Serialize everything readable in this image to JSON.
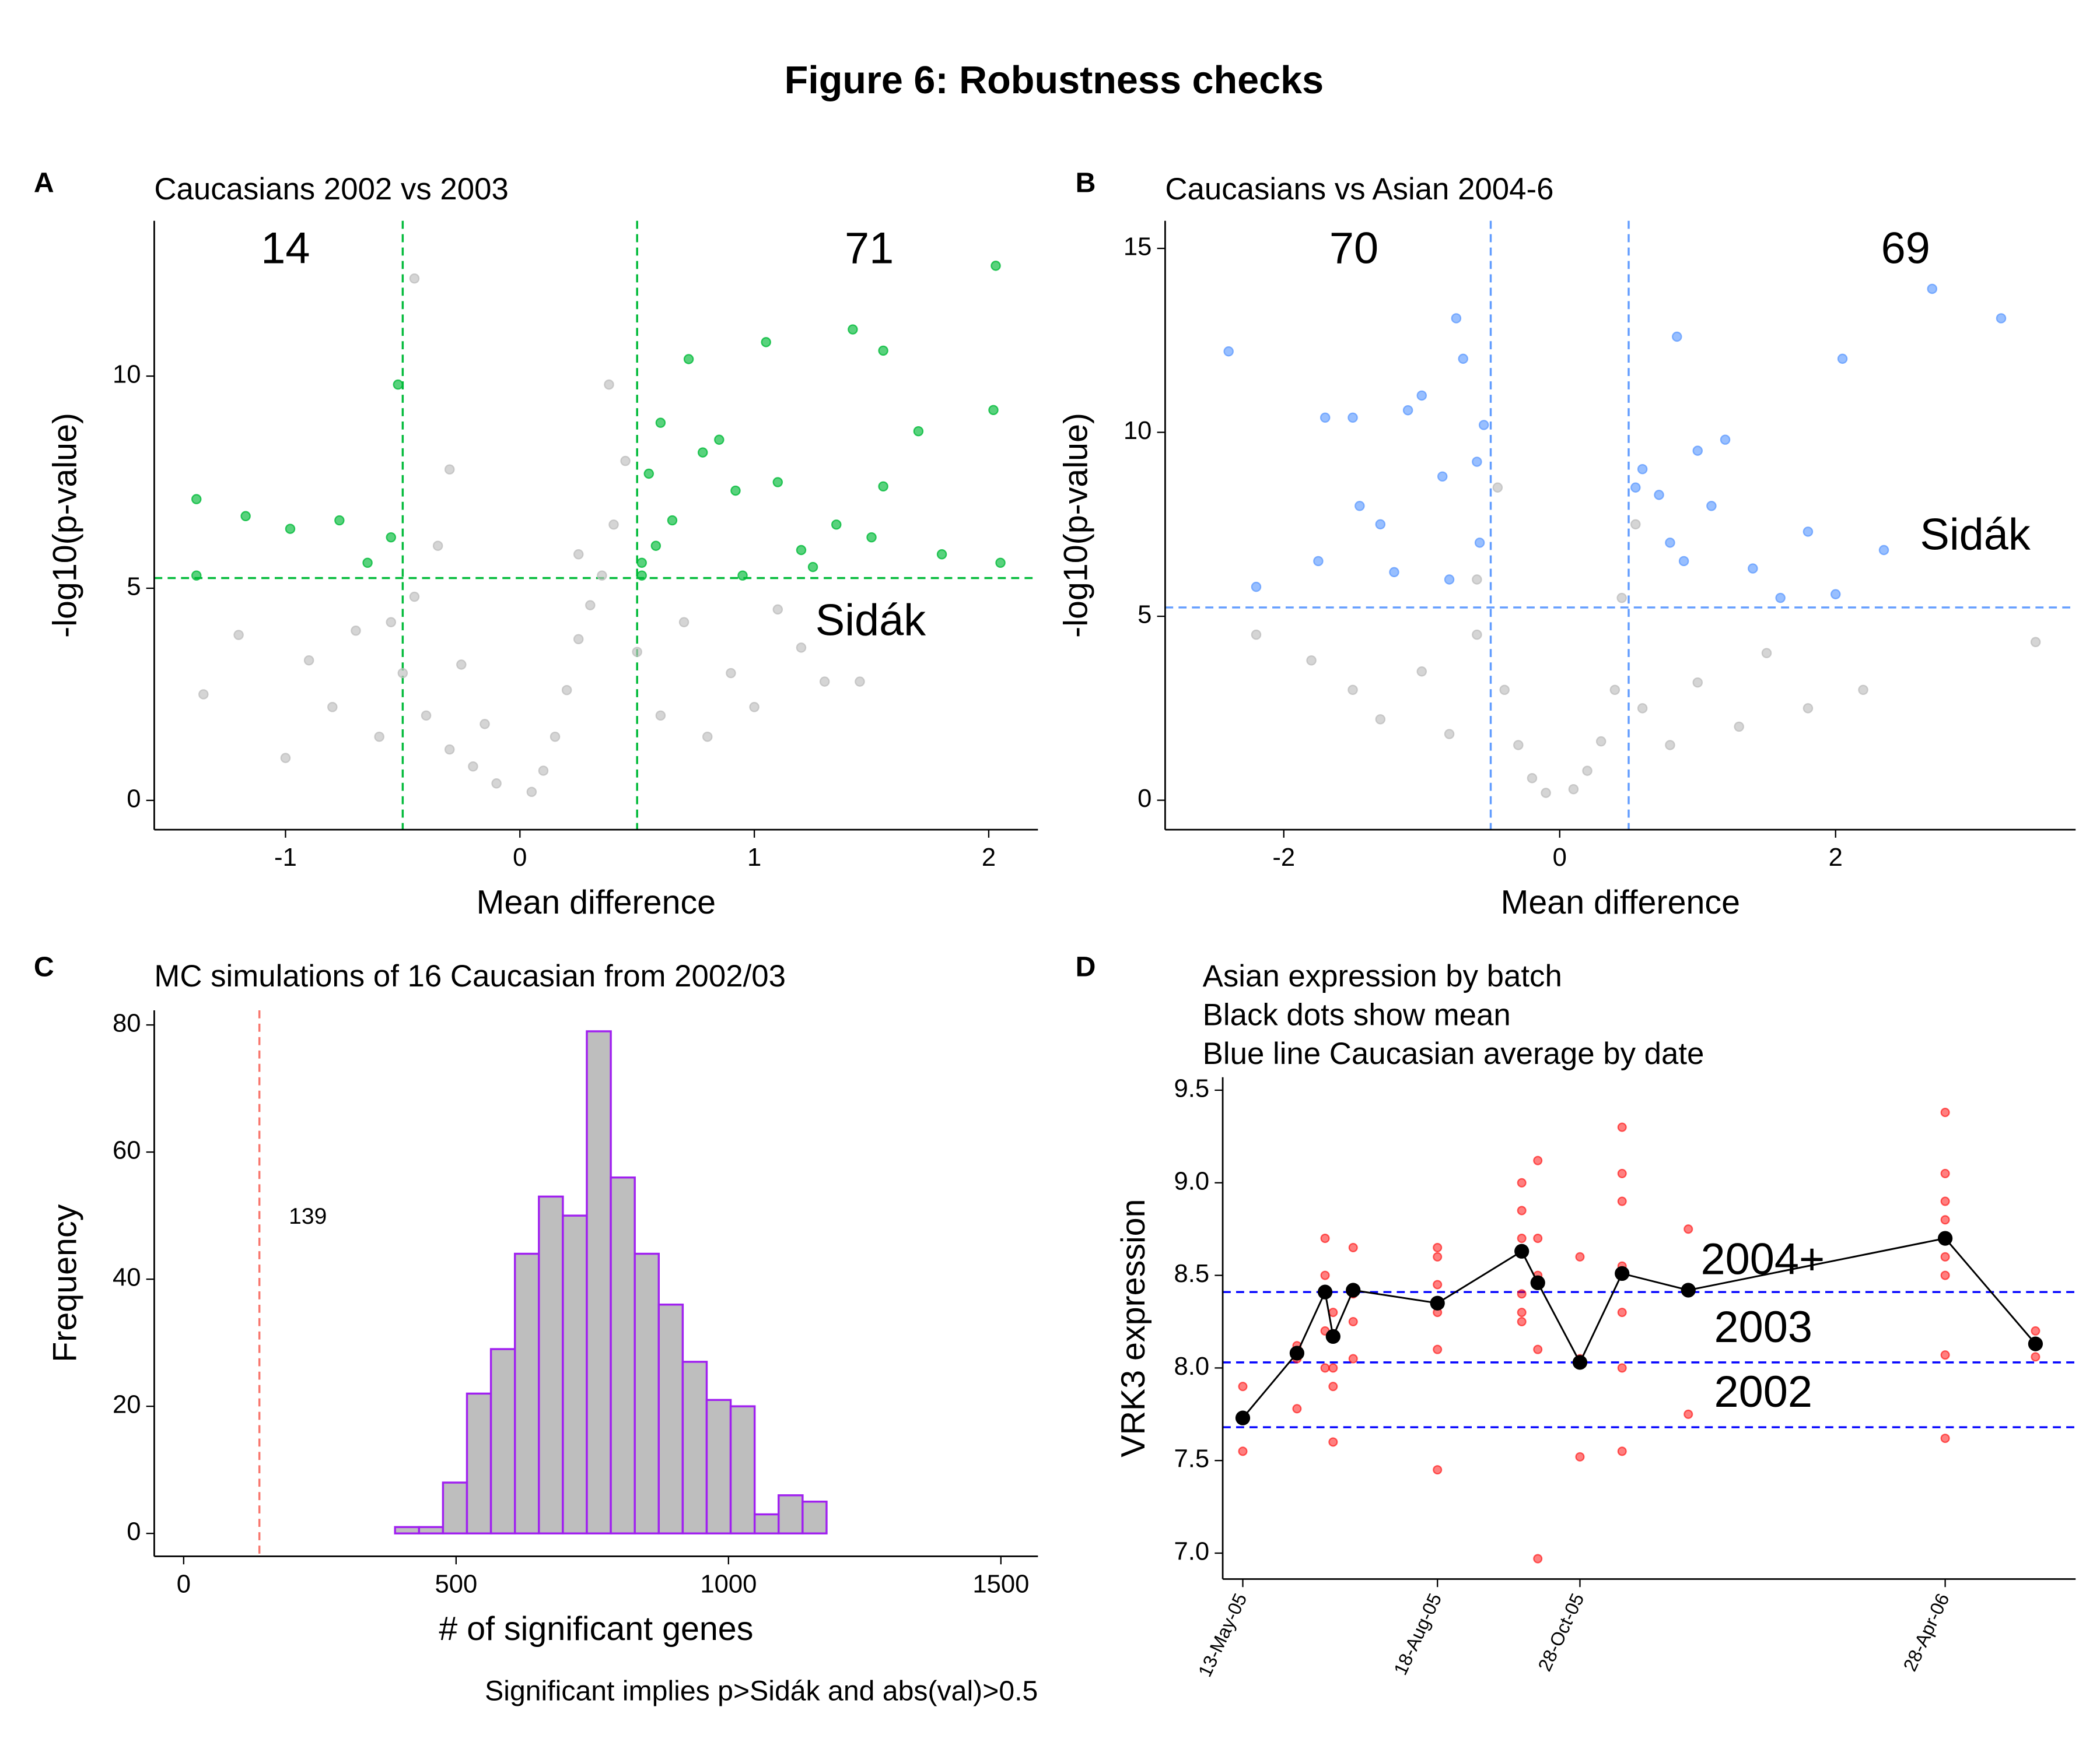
{
  "title": "Figure 6: Robustness checks",
  "chart_data": [
    {
      "panel": "A",
      "type": "scatter",
      "title": "Caucasians 2002 vs 2003",
      "xlabel": "Mean difference",
      "ylabel": "-log10(p-value)",
      "xlim": [
        -1.56,
        2.21
      ],
      "ylim": [
        -0.69,
        13.66
      ],
      "xticks": [
        -1,
        0,
        1,
        2
      ],
      "yticks": [
        0,
        5,
        10
      ],
      "series": [
        {
          "color": "#bebebe",
          "x": [
            -1.35,
            -1.2,
            -1.0,
            -0.9,
            -0.8,
            -0.7,
            -0.6,
            -0.5,
            -0.45,
            -0.4,
            -0.35,
            -0.3,
            -0.25,
            -0.2,
            -0.15,
            -0.1,
            0.05,
            0.1,
            0.15,
            0.2,
            0.25,
            0.3,
            0.35,
            0.4,
            0.45,
            0.5,
            0.6,
            0.7,
            0.8,
            0.9,
            1.0,
            1.1,
            1.3,
            -0.45,
            -0.55,
            -0.3,
            0.25,
            0.38,
            1.2,
            1.45
          ],
          "values": [
            2.5,
            3.9,
            1.0,
            3.3,
            2.2,
            4.0,
            1.5,
            3.0,
            4.8,
            2.0,
            6.0,
            1.2,
            3.2,
            0.8,
            1.8,
            0.4,
            0.2,
            0.7,
            1.5,
            2.6,
            3.8,
            4.6,
            5.3,
            6.5,
            8.0,
            3.5,
            2.0,
            4.2,
            1.5,
            3.0,
            2.2,
            4.5,
            2.8,
            12.3,
            4.2,
            7.8,
            5.8,
            9.8,
            3.6,
            2.8
          ]
        },
        {
          "color": "#00ba38",
          "x": [
            -1.38,
            -1.38,
            -1.17,
            -0.98,
            -0.77,
            -0.65,
            -0.55,
            -0.52,
            0.52,
            0.55,
            0.58,
            0.6,
            0.65,
            0.72,
            0.78,
            0.85,
            0.92,
            1.05,
            1.1,
            1.2,
            1.35,
            1.42,
            1.5,
            1.55,
            1.55,
            1.7,
            1.8,
            2.02,
            2.03,
            2.05,
            0.52,
            1.25,
            0.95
          ],
          "values": [
            7.1,
            5.3,
            6.7,
            6.4,
            6.6,
            5.6,
            6.2,
            9.8,
            5.6,
            7.7,
            6.0,
            8.9,
            6.6,
            10.4,
            8.2,
            8.5,
            7.3,
            10.8,
            7.5,
            5.9,
            6.5,
            11.1,
            6.2,
            10.6,
            7.4,
            8.7,
            5.8,
            9.2,
            12.6,
            5.6,
            5.3,
            5.5,
            5.3
          ]
        }
      ],
      "vlines": [
        -0.5,
        0.5
      ],
      "hline": 5.24,
      "line_color": "#00ba38",
      "annotations": {
        "left_count": 14,
        "right_count": 71,
        "threshold": "Sidák"
      }
    },
    {
      "panel": "B",
      "type": "scatter",
      "title": "Caucasians vs Asian 2004-6",
      "xlabel": "Mean difference",
      "ylabel": "-log10(p-value)",
      "xlim": [
        -2.86,
        3.74
      ],
      "ylim": [
        -0.8,
        15.75
      ],
      "xticks": [
        -2,
        0,
        2
      ],
      "yticks": [
        0,
        5,
        10,
        15
      ],
      "series": [
        {
          "color": "#bebebe",
          "x": [
            -2.2,
            -1.8,
            -1.5,
            -1.3,
            -1.0,
            -0.8,
            -0.6,
            -0.45,
            -0.4,
            -0.3,
            -0.2,
            -0.1,
            0.1,
            0.2,
            0.3,
            0.4,
            0.45,
            0.6,
            0.8,
            1.0,
            1.3,
            1.5,
            1.8,
            2.2,
            3.45,
            -0.6,
            0.55
          ],
          "values": [
            4.5,
            3.8,
            3.0,
            2.2,
            3.5,
            1.8,
            4.5,
            8.5,
            3.0,
            1.5,
            0.6,
            0.2,
            0.3,
            0.8,
            1.6,
            3.0,
            5.5,
            2.5,
            1.5,
            3.2,
            2.0,
            4.0,
            2.5,
            3.0,
            4.3,
            6.0,
            7.5
          ]
        },
        {
          "color": "#619cff",
          "x": [
            -2.4,
            -2.2,
            -1.75,
            -1.7,
            -1.5,
            -1.45,
            -1.3,
            -1.2,
            -1.1,
            -1.0,
            -0.85,
            -0.75,
            -0.8,
            -0.7,
            -0.6,
            -0.58,
            -0.55,
            0.55,
            0.6,
            0.72,
            0.8,
            0.85,
            0.9,
            1.0,
            1.1,
            1.2,
            1.4,
            1.6,
            1.8,
            2.05,
            2.35,
            2.7,
            3.2,
            2.0
          ],
          "values": [
            12.2,
            5.8,
            6.5,
            10.4,
            10.4,
            8.0,
            7.5,
            6.2,
            10.6,
            11.0,
            8.8,
            13.1,
            6.0,
            12.0,
            9.2,
            7.0,
            10.2,
            8.5,
            9.0,
            8.3,
            7.0,
            12.6,
            6.5,
            9.5,
            8.0,
            9.8,
            6.3,
            5.5,
            7.3,
            12.0,
            6.8,
            13.9,
            13.1,
            5.6
          ]
        }
      ],
      "vlines": [
        -0.5,
        0.5
      ],
      "hline": 5.24,
      "line_color": "#619cff",
      "annotations": {
        "left_count": 70,
        "right_count": 69,
        "threshold": "Sidák"
      }
    },
    {
      "panel": "C",
      "type": "histogram",
      "title": "MC simulations of 16 Caucasian from 2002/03",
      "xlabel": "# of significant genes",
      "ylabel": "Frequency",
      "caption": "Significant implies p>Sidák and abs(val)>0.5",
      "xlim": [
        -54,
        1568
      ],
      "ylim": [
        -3.6,
        82.3
      ],
      "xticks": [
        0,
        500,
        1000,
        1500
      ],
      "yticks": [
        0,
        20,
        40,
        60,
        80
      ],
      "bins": [
        36,
        80,
        124,
        168,
        212,
        256,
        300,
        344,
        388,
        432,
        476,
        520,
        564,
        608,
        652,
        696,
        740,
        784,
        828,
        872,
        916,
        960,
        1004,
        1048,
        1092,
        1136,
        1180,
        1224,
        1268,
        1312,
        1356,
        1400,
        1444,
        1488
      ],
      "values": [
        0,
        0,
        0,
        0,
        0,
        0,
        0,
        0,
        1,
        1,
        8,
        22,
        29,
        44,
        53,
        50,
        79,
        56,
        44,
        36,
        27,
        21,
        20,
        3,
        6,
        5,
        0,
        0,
        0,
        0,
        0,
        0,
        0
      ],
      "color": "#bebebe",
      "edge_color": "#a020f0",
      "vline": 139,
      "vline_color": "#f8766d"
    },
    {
      "panel": "D",
      "type": "line",
      "title": [
        "Asian expression by batch",
        "Black dots show mean",
        "Blue line Caucasian average by date"
      ],
      "ylabel": "VRK3 expression",
      "xlim": [
        "2005-05-03",
        "2006-07-02"
      ],
      "ylim": [
        6.86,
        9.57
      ],
      "xticks": [
        {
          "value": "2005-05-13",
          "label": "13-May-05"
        },
        {
          "value": "2005-08-18",
          "label": "18-Aug-05"
        },
        {
          "value": "2005-10-28",
          "label": "28-Oct-05"
        },
        {
          "value": "2006-04-28",
          "label": "28-Apr-06"
        }
      ],
      "yticks": [
        {
          "value": 7,
          "label": "7.0"
        },
        7.5,
        {
          "value": 8,
          "label": "8.0"
        },
        8.5,
        {
          "value": 9,
          "label": "9.0"
        },
        9.5
      ],
      "points": {
        "color": "#ff0000",
        "x": [
          "2005-05-13",
          "2005-05-13",
          "2005-05-13",
          "2005-06-09",
          "2005-06-09",
          "2005-06-09",
          "2005-06-23",
          "2005-06-23",
          "2005-06-23",
          "2005-06-23",
          "2005-06-23",
          "2005-06-27",
          "2005-06-27",
          "2005-06-27",
          "2005-06-27",
          "2005-07-07",
          "2005-07-07",
          "2005-07-07",
          "2005-07-07",
          "2005-08-18",
          "2005-08-18",
          "2005-08-18",
          "2005-08-18",
          "2005-08-18",
          "2005-08-18",
          "2005-09-29",
          "2005-09-29",
          "2005-09-29",
          "2005-09-29",
          "2005-09-29",
          "2005-09-29",
          "2005-10-07",
          "2005-10-07",
          "2005-10-07",
          "2005-10-07",
          "2005-10-07",
          "2005-10-28",
          "2005-10-28",
          "2005-10-28",
          "2005-11-18",
          "2005-11-18",
          "2005-11-18",
          "2005-11-18",
          "2005-11-18",
          "2005-11-18",
          "2005-11-18",
          "2005-12-21",
          "2005-12-21",
          "2006-04-28",
          "2006-04-28",
          "2006-04-28",
          "2006-04-28",
          "2006-04-28",
          "2006-04-28",
          "2006-04-28",
          "2006-04-28",
          "2006-06-12",
          "2006-06-12"
        ],
        "values": [
          7.9,
          7.72,
          7.55,
          8.05,
          8.12,
          7.78,
          8.7,
          8.5,
          8.4,
          8.2,
          8.0,
          8.3,
          8.0,
          7.9,
          7.6,
          8.65,
          8.4,
          8.25,
          8.05,
          8.65,
          8.6,
          8.45,
          8.3,
          8.1,
          7.45,
          9.0,
          8.85,
          8.7,
          8.4,
          8.3,
          8.25,
          9.12,
          8.7,
          8.5,
          8.1,
          6.97,
          8.6,
          8.05,
          7.52,
          9.3,
          9.05,
          8.9,
          8.55,
          8.3,
          8.0,
          7.55,
          8.75,
          7.75,
          9.38,
          9.05,
          8.9,
          8.8,
          8.6,
          8.5,
          8.07,
          7.62,
          8.2,
          8.06
        ]
      },
      "means": {
        "color": "#000000",
        "x": [
          "2005-05-13",
          "2005-06-09",
          "2005-06-23",
          "2005-06-27",
          "2005-07-07",
          "2005-08-18",
          "2005-09-29",
          "2005-10-07",
          "2005-10-28",
          "2005-11-18",
          "2005-12-21",
          "2006-04-28",
          "2006-06-12"
        ],
        "values": [
          7.73,
          8.08,
          8.41,
          8.17,
          8.42,
          8.35,
          8.63,
          8.46,
          8.03,
          8.51,
          8.42,
          8.7,
          8.13
        ]
      },
      "hlines": [
        {
          "value": 8.41,
          "label": "2004+"
        },
        {
          "value": 8.03,
          "label": "2003"
        },
        {
          "value": 7.68,
          "label": "2002"
        }
      ],
      "hline_color": "#0000ff"
    }
  ]
}
